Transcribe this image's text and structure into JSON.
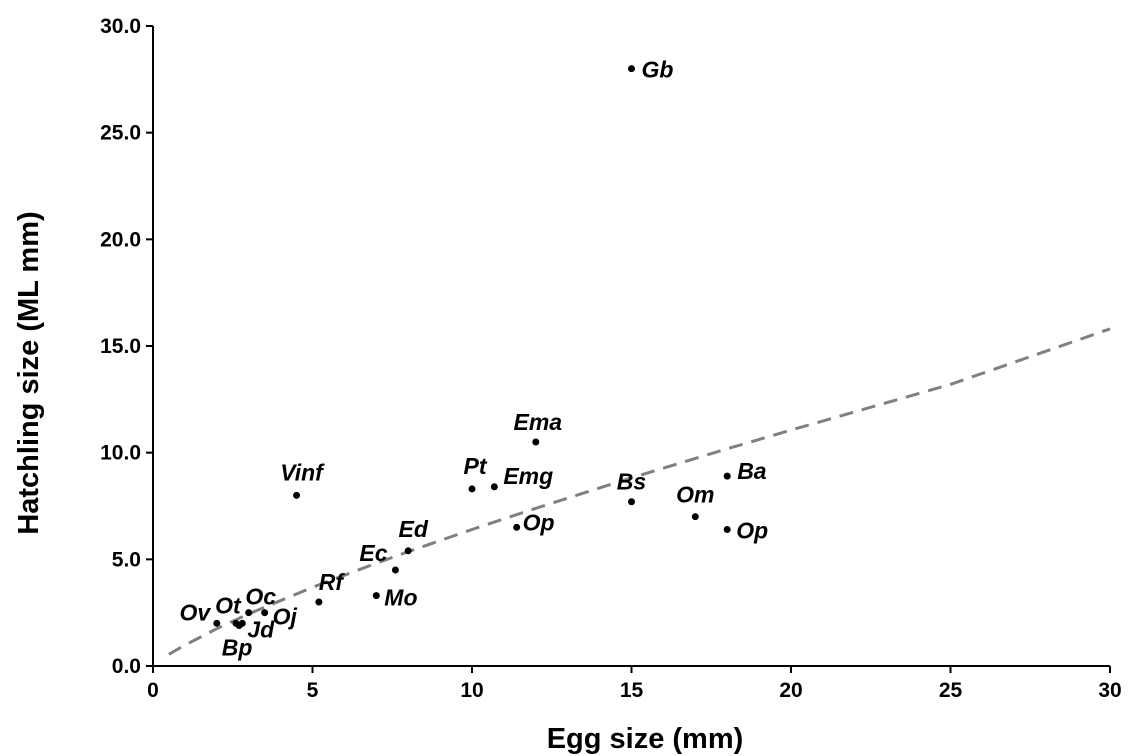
{
  "chart_data": {
    "type": "scatter",
    "title": "",
    "xlabel": "Egg size (mm)",
    "ylabel": "Hatchling size (ML mm)",
    "xlim": [
      0,
      30
    ],
    "ylim": [
      0,
      30
    ],
    "x_ticks": [
      "0",
      "5",
      "10",
      "15",
      "20",
      "25",
      "30"
    ],
    "y_ticks": [
      "0.0",
      "5.0",
      "10.0",
      "15.0",
      "20.0",
      "25.0",
      "30.0"
    ],
    "grid": false,
    "legend": "none",
    "point_color": "#000000",
    "trend_color": "#808080",
    "points": [
      {
        "label": "Gb",
        "x": 15.0,
        "y": 28.0
      },
      {
        "label": "Ema",
        "x": 12.0,
        "y": 10.5
      },
      {
        "label": "Ba",
        "x": 18.0,
        "y": 8.9
      },
      {
        "label": "Pt",
        "x": 10.0,
        "y": 8.3
      },
      {
        "label": "Emg",
        "x": 10.7,
        "y": 8.4
      },
      {
        "label": "Vinf",
        "x": 4.5,
        "y": 8.0
      },
      {
        "label": "Bs",
        "x": 15.0,
        "y": 7.7
      },
      {
        "label": "Om",
        "x": 17.0,
        "y": 7.0
      },
      {
        "label": "Op",
        "x": 11.4,
        "y": 6.5
      },
      {
        "label": "Op",
        "x": 18.0,
        "y": 6.4
      },
      {
        "label": "Ed",
        "x": 8.0,
        "y": 5.4
      },
      {
        "label": "Ec",
        "x": 7.6,
        "y": 4.5
      },
      {
        "label": "Mo",
        "x": 7.0,
        "y": 3.3
      },
      {
        "label": "Rf",
        "x": 5.2,
        "y": 3.0
      },
      {
        "label": "Oc",
        "x": 3.0,
        "y": 2.5
      },
      {
        "label": "Oj",
        "x": 3.5,
        "y": 2.5
      },
      {
        "label": "Ot",
        "x": 2.6,
        "y": 2.0
      },
      {
        "label": "Jd",
        "x": 2.8,
        "y": 2.0
      },
      {
        "label": "Ov",
        "x": 2.0,
        "y": 2.0
      },
      {
        "label": "Bp",
        "x": 2.7,
        "y": 1.9
      }
    ],
    "trendline": {
      "style": "dashed",
      "type": "power",
      "points": [
        {
          "x": 0.5,
          "y": 0.55
        },
        {
          "x": 1,
          "y": 0.98
        },
        {
          "x": 2,
          "y": 1.75
        },
        {
          "x": 3,
          "y": 2.44
        },
        {
          "x": 5,
          "y": 3.69
        },
        {
          "x": 7,
          "y": 4.82
        },
        {
          "x": 8,
          "y": 5.36
        },
        {
          "x": 10,
          "y": 6.4
        },
        {
          "x": 12,
          "y": 7.39
        },
        {
          "x": 15,
          "y": 8.82
        },
        {
          "x": 18,
          "y": 10.18
        },
        {
          "x": 20,
          "y": 11.06
        },
        {
          "x": 25,
          "y": 13.2
        },
        {
          "x": 30,
          "y": 15.8
        }
      ]
    }
  }
}
